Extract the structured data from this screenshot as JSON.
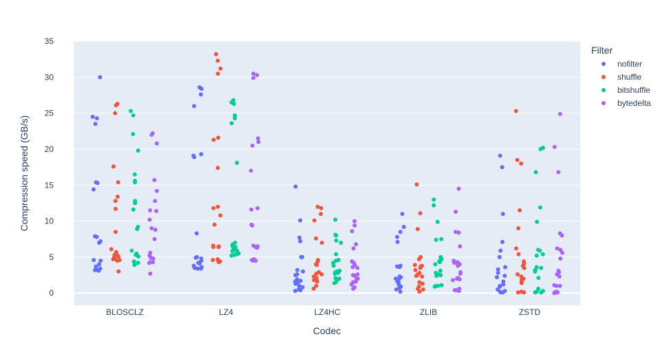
{
  "chart_data": {
    "type": "scatter",
    "xlabel": "Codec",
    "ylabel": "Compression speed (GB/s)",
    "categories": [
      "BLOSCLZ",
      "LZ4",
      "LZ4HC",
      "ZLIB",
      "ZSTD"
    ],
    "yticks": [
      0,
      5,
      10,
      15,
      20,
      25,
      30,
      35
    ],
    "ylim": [
      -1.7,
      35
    ],
    "grid": true,
    "legend": {
      "title": "Filter",
      "placement": "right"
    },
    "series": [
      {
        "name": "nofilter",
        "color": "#636efa",
        "values": [
          [
            30.0,
            24.5,
            24.3,
            23.5,
            15.4,
            15.3,
            14.4,
            7.9,
            7.8,
            7.2,
            7.0,
            4.6,
            4.5,
            4.0,
            3.7,
            3.4,
            3.3,
            3.2,
            3.2,
            3.1
          ],
          [
            28.6,
            28.4,
            27.6,
            26.0,
            19.3,
            19.1,
            18.9,
            8.3,
            5.0,
            4.9,
            4.8,
            4.5,
            4.2,
            4.1,
            3.8,
            3.6,
            3.5,
            3.4,
            3.4,
            3.4
          ],
          [
            14.8,
            10.1,
            7.7,
            7.2,
            5.0,
            5.0,
            3.2,
            3.0,
            2.6,
            2.5,
            1.9,
            1.7,
            1.6,
            1.4,
            1.3,
            1.0,
            0.8,
            0.5,
            0.4,
            0.3
          ],
          [
            11.0,
            9.2,
            8.5,
            7.8,
            7.1,
            3.8,
            3.7,
            3.6,
            2.3,
            2.2,
            2.0,
            1.9,
            1.6,
            1.5,
            1.4,
            1.2,
            0.9,
            0.7,
            0.5,
            0.2
          ],
          [
            19.1,
            17.5,
            11.0,
            7.1,
            5.9,
            5.0,
            3.6,
            3.3,
            2.8,
            2.4,
            2.2,
            1.6,
            1.2,
            1.0,
            0.9,
            0.5,
            0.3,
            0.2,
            0.1,
            0.1
          ]
        ]
      },
      {
        "name": "shuffle",
        "color": "#ef553b",
        "values": [
          [
            26.3,
            26.1,
            25.0,
            17.6,
            15.4,
            13.4,
            12.8,
            11.7,
            8.5,
            6.1,
            5.7,
            5.5,
            5.3,
            5.1,
            4.9,
            4.8,
            4.7,
            4.6,
            4.5,
            3.0
          ],
          [
            33.2,
            32.3,
            31.2,
            30.5,
            21.6,
            21.3,
            17.4,
            12.0,
            11.8,
            10.8,
            9.5,
            6.6,
            6.5,
            6.4,
            6.4,
            4.7,
            4.6,
            4.5,
            4.4,
            4.3
          ],
          [
            12.0,
            11.8,
            11.0,
            10.1,
            7.6,
            7.0,
            4.6,
            4.4,
            4.0,
            3.9,
            2.9,
            2.7,
            2.6,
            2.3,
            2.1,
            1.9,
            1.8,
            1.6,
            1.0,
            0.6
          ],
          [
            15.1,
            11.1,
            8.9,
            5.0,
            4.7,
            3.9,
            3.8,
            3.7,
            3.5,
            3.2,
            2.8,
            2.6,
            2.4,
            2.3,
            1.5,
            1.3,
            0.9,
            0.6,
            0.5,
            0.2
          ],
          [
            25.3,
            18.5,
            18.0,
            11.5,
            9.0,
            6.2,
            5.4,
            4.4,
            4.1,
            3.8,
            3.5,
            2.6,
            2.3,
            2.0,
            1.8,
            1.5,
            1.4,
            0.2,
            0.1,
            0.1
          ]
        ]
      },
      {
        "name": "bitshuffle",
        "color": "#00cc96",
        "values": [
          [
            25.3,
            24.7,
            22.1,
            19.8,
            16.5,
            15.6,
            15.4,
            12.8,
            12.5,
            11.6,
            9.2,
            8.9,
            5.9,
            5.5,
            5.3,
            5.1,
            4.4,
            4.2,
            4.0,
            3.9
          ],
          [
            26.8,
            26.5,
            26.3,
            24.7,
            24.3,
            23.6,
            18.1,
            7.0,
            6.8,
            6.6,
            6.4,
            6.2,
            6.0,
            5.9,
            5.8,
            5.6,
            5.5,
            5.4,
            5.3,
            5.2
          ],
          [
            10.2,
            8.1,
            8.0,
            7.3,
            7.0,
            5.4,
            4.6,
            4.5,
            4.2,
            3.8,
            3.1,
            3.0,
            2.9,
            2.8,
            2.7,
            2.1,
            2.0,
            1.8,
            1.5,
            1.4
          ],
          [
            13.0,
            12.2,
            9.9,
            7.5,
            7.4,
            5.0,
            4.7,
            4.6,
            4.4,
            4.3,
            4.0,
            3.1,
            2.8,
            2.6,
            2.5,
            2.4,
            1.1,
            1.0,
            1.0,
            0.9
          ],
          [
            20.2,
            20.0,
            16.8,
            11.9,
            9.9,
            6.0,
            5.9,
            5.4,
            5.2,
            3.6,
            3.5,
            3.2,
            3.0,
            3.0,
            2.1,
            0.6,
            0.3,
            0.2,
            0.1,
            0.1
          ]
        ]
      },
      {
        "name": "bytedelta",
        "color": "#ab63fa",
        "values": [
          [
            22.2,
            22.0,
            20.8,
            15.7,
            14.2,
            12.8,
            11.5,
            11.4,
            10.2,
            9.0,
            8.8,
            7.5,
            5.6,
            5.2,
            4.9,
            4.8,
            4.3,
            4.3,
            4.2,
            2.7
          ],
          [
            30.5,
            30.3,
            29.9,
            21.5,
            21.0,
            20.5,
            17.0,
            11.8,
            11.6,
            9.5,
            9.4,
            6.6,
            6.5,
            6.4,
            6.3,
            4.7,
            4.6,
            4.6,
            4.5,
            4.5
          ],
          [
            10.0,
            9.4,
            8.6,
            6.8,
            6.2,
            4.4,
            4.2,
            3.9,
            3.6,
            3.5,
            2.6,
            2.5,
            2.4,
            2.0,
            1.9,
            1.6,
            1.5,
            1.2,
            0.8,
            0.6
          ],
          [
            14.5,
            11.3,
            8.5,
            8.4,
            6.5,
            4.5,
            4.3,
            4.2,
            4.0,
            3.8,
            2.9,
            2.7,
            2.1,
            2.0,
            1.9,
            1.8,
            0.6,
            0.4,
            0.4,
            0.3
          ],
          [
            24.9,
            20.3,
            16.8,
            8.3,
            8.0,
            6.2,
            6.0,
            5.6,
            4.8,
            3.1,
            2.9,
            2.6,
            2.3,
            1.1,
            1.0,
            1.0,
            0.2,
            0.1,
            0.1,
            0.0
          ]
        ]
      }
    ]
  }
}
